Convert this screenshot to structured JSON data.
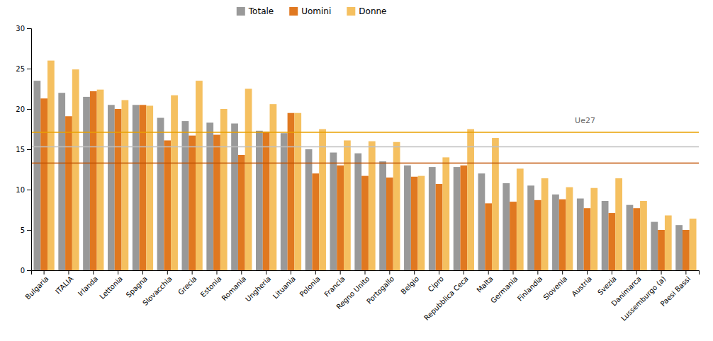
{
  "chart_data": {
    "type": "bar",
    "categories": [
      "Bulgaria",
      "ITALIA",
      "Irlanda",
      "Lettonia",
      "Spagna",
      "Slovacchia",
      "Grecia",
      "Estonia",
      "Romania",
      "Ungheria",
      "Lituania",
      "Polonia",
      "Francia",
      "Regno Unito",
      "Portogallo",
      "Belgio",
      "Cipro",
      "Repubblica Ceca",
      "Malta",
      "Germania",
      "Finlandia",
      "Slovenia",
      "Austria",
      "Svezia",
      "Danimarca",
      "Lussemburgo (a)",
      "Paesi Bassi"
    ],
    "series": [
      {
        "name": "Totale",
        "color": "#999999",
        "values": [
          23.5,
          22.0,
          21.5,
          20.5,
          20.5,
          18.9,
          18.5,
          18.3,
          18.2,
          17.3,
          17.0,
          15.0,
          14.6,
          14.5,
          13.5,
          13.0,
          12.8,
          12.8,
          12.0,
          10.8,
          10.5,
          9.4,
          8.9,
          8.6,
          8.1,
          6.0,
          5.6
        ]
      },
      {
        "name": "Uomini",
        "color": "#e07820",
        "values": [
          21.3,
          19.1,
          22.2,
          20.0,
          20.5,
          16.1,
          16.7,
          16.8,
          14.3,
          17.2,
          19.5,
          12.0,
          13.0,
          11.7,
          11.5,
          11.6,
          10.7,
          13.0,
          8.3,
          8.5,
          8.7,
          8.8,
          7.7,
          7.1,
          7.7,
          5.0,
          5.0
        ]
      },
      {
        "name": "Donne",
        "color": "#f5c060",
        "values": [
          26.0,
          24.9,
          22.4,
          21.1,
          20.4,
          21.7,
          23.5,
          20.0,
          22.5,
          20.6,
          19.5,
          17.5,
          16.1,
          16.0,
          15.9,
          11.7,
          14.0,
          17.5,
          16.4,
          12.6,
          11.4,
          10.3,
          10.2,
          11.4,
          8.6,
          6.8,
          6.4
        ]
      }
    ],
    "reference_lines": [
      {
        "value": 17.1,
        "color": "#e8a000"
      },
      {
        "value": 15.3,
        "color": "#c0c0c0"
      },
      {
        "value": 13.3,
        "color": "#c05000"
      }
    ],
    "annotations": [
      {
        "text": "Ue27",
        "x": 21.5,
        "y": 18.5
      }
    ],
    "ylim": [
      0,
      30
    ],
    "yticks": [
      0,
      5,
      10,
      15,
      20,
      25,
      30
    ],
    "grid": false,
    "legend": "top"
  }
}
